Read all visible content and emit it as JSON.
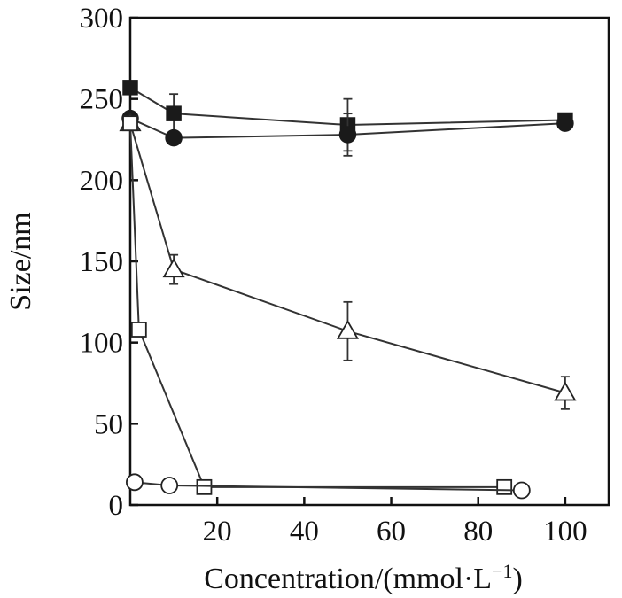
{
  "chart_data": {
    "type": "scatter",
    "title": "",
    "xlabel": "Concentration/(mmol·L",
    "xlabel_sup": "−1",
    "xlabel_close": ")",
    "ylabel": "Size/nm",
    "xlim": [
      0,
      110
    ],
    "ylim": [
      0,
      300
    ],
    "xticks": [
      20,
      40,
      60,
      80,
      100
    ],
    "yticks": [
      0,
      50,
      100,
      150,
      200,
      250,
      300
    ],
    "grid": false,
    "series": [
      {
        "name": "filled-square",
        "marker": "square-filled",
        "x": [
          0,
          10,
          50,
          100
        ],
        "y": [
          257,
          241,
          234,
          237
        ],
        "err": [
          0,
          12,
          16,
          0
        ]
      },
      {
        "name": "filled-circle",
        "marker": "circle-filled",
        "x": [
          0,
          10,
          50,
          100
        ],
        "y": [
          238,
          226,
          228,
          235
        ],
        "err": [
          0,
          0,
          13,
          0
        ]
      },
      {
        "name": "open-triangle",
        "marker": "triangle-open",
        "x": [
          0,
          10,
          50,
          100
        ],
        "y": [
          235,
          145,
          107,
          69
        ],
        "err": [
          0,
          9,
          18,
          10
        ]
      },
      {
        "name": "open-square",
        "marker": "square-open",
        "x": [
          0,
          2,
          17,
          86
        ],
        "y": [
          235,
          108,
          11,
          11
        ],
        "err": [
          0,
          0,
          0,
          0
        ]
      },
      {
        "name": "open-circle",
        "marker": "circle-open",
        "x": [
          1,
          9,
          90
        ],
        "y": [
          14,
          12,
          9
        ],
        "err": [
          0,
          0,
          0
        ]
      }
    ]
  }
}
